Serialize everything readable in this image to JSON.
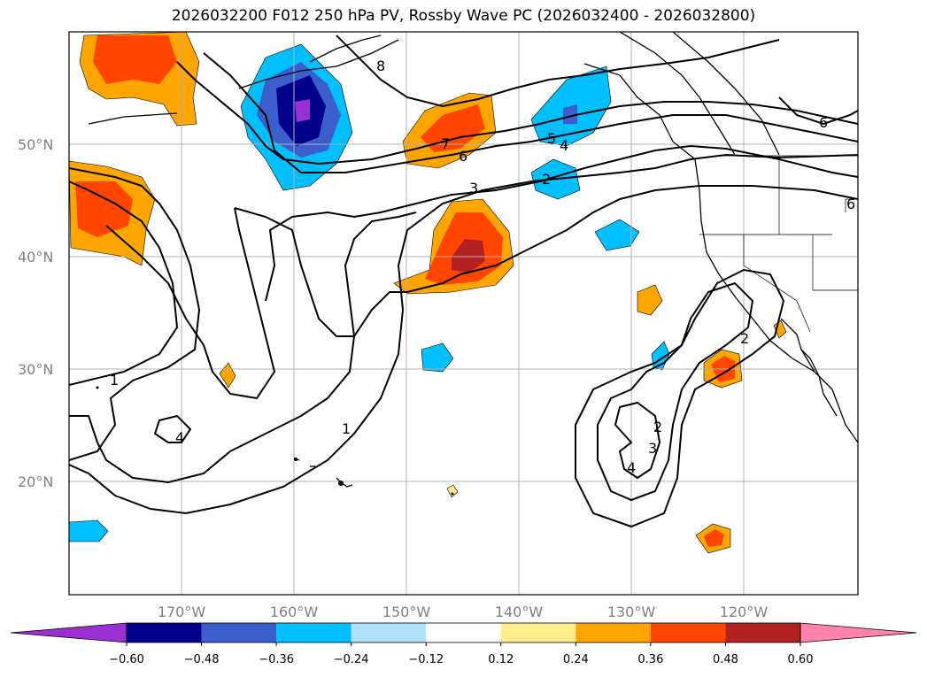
{
  "title": "2026032200 F012 250 hPa PV, Rossby Wave PC (2026032400 - 2026032800)",
  "lat_labels": [
    "50°N",
    "40°N",
    "30°N",
    "20°N"
  ],
  "lon_labels": [
    "170°W",
    "160°W",
    "150°W",
    "140°W",
    "130°W",
    "120°W"
  ],
  "colorbar": {
    "ticks": [
      "−0.60",
      "−0.48",
      "−0.36",
      "−0.24",
      "−0.12",
      "0.12",
      "0.24",
      "0.36",
      "0.48",
      "0.60"
    ],
    "colors": [
      "#9b30d0",
      "#00008b",
      "#3a5fcd",
      "#00bfff",
      "#b0e2ff",
      "#ffffff",
      "#ffec8b",
      "#ffa500",
      "#ff4500",
      "#b22222",
      "#ff82ab"
    ]
  },
  "contour_labels": [
    "8",
    "7",
    "6",
    "6",
    "5",
    "4",
    "3",
    "2",
    "1",
    "1",
    "4",
    "2",
    "3",
    "4",
    "2",
    "6"
  ]
}
